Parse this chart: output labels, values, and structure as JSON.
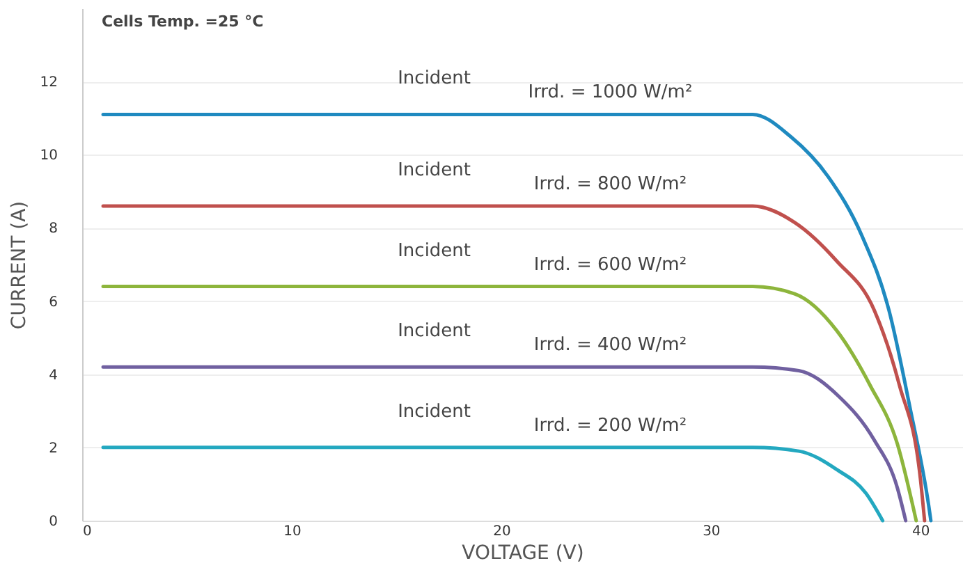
{
  "chart_data": {
    "type": "line",
    "xlabel": "VOLTAGE (V)",
    "ylabel": "CURRENT (A)",
    "xlim": [
      0,
      42
    ],
    "xticks": [
      0,
      10,
      20,
      30,
      40
    ],
    "ylim": [
      0,
      14
    ],
    "yticks": [
      0,
      2,
      4,
      6,
      8,
      10,
      12
    ],
    "grid": "y",
    "marker": "none",
    "line_style": "solid",
    "series": [
      {
        "color": "#1f8ac0",
        "x": [
          1,
          10,
          20,
          30,
          32,
          33.8,
          35.6,
          37.2,
          38.5,
          39.5,
          40.4,
          40.5
        ],
        "values": [
          11.1,
          11.1,
          11.1,
          11.1,
          11.1,
          10.5,
          9.4,
          7.8,
          5.75,
          3.1,
          0.4,
          0
        ]
      },
      {
        "color": "#c0504d",
        "x": [
          1,
          10,
          20,
          30,
          32,
          34,
          36,
          37.8,
          39,
          40,
          40.2
        ],
        "values": [
          8.6,
          8.6,
          8.6,
          8.6,
          8.6,
          8.15,
          7.1,
          5.75,
          3.7,
          1.15,
          0
        ]
      },
      {
        "color": "#8db53c",
        "x": [
          1,
          10,
          20,
          30,
          32,
          34,
          36,
          37.6,
          38.9,
          39.8
        ],
        "values": [
          6.4,
          6.4,
          6.4,
          6.4,
          6.4,
          6.2,
          5.2,
          3.7,
          2.1,
          0
        ]
      },
      {
        "color": "#7060a0",
        "x": [
          1,
          10,
          20,
          30,
          32,
          34.2,
          36.1,
          37.8,
          38.9,
          39.3
        ],
        "values": [
          4.2,
          4.2,
          4.2,
          4.2,
          4.2,
          4.1,
          3.4,
          2.2,
          0.9,
          0
        ]
      },
      {
        "color": "#23a8c0",
        "x": [
          1,
          10,
          20,
          30,
          32,
          34.2,
          36,
          37.4,
          38.2
        ],
        "values": [
          2.0,
          2.0,
          2.0,
          2.0,
          2.0,
          1.9,
          1.4,
          0.75,
          0
        ]
      }
    ],
    "annotations": [
      "Cells Temp. =25 °C",
      "Incident",
      "Irrd. = 1000 W/m²",
      "Incident",
      "Irrd. = 800  W/m²",
      "Incident",
      "Irrd. = 600  W/m²",
      "Incident",
      "Irrd. = 400  W/m²",
      "Incident",
      "Irrd. = 200  W/m²"
    ]
  }
}
